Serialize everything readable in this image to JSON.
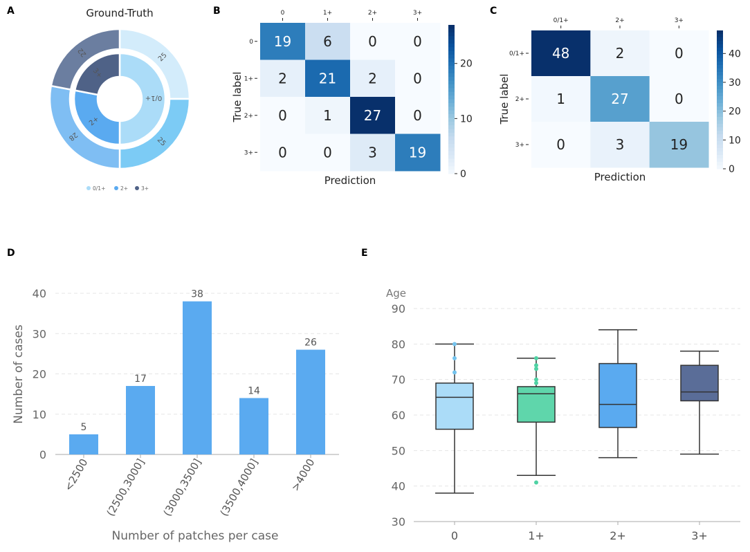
{
  "panels": {
    "a": "A",
    "b": "B",
    "c": "C",
    "d": "D",
    "e": "E"
  },
  "chart_data": [
    {
      "id": "A",
      "type": "pie",
      "title": "Ground-Truth",
      "rings": [
        {
          "name": "outer",
          "slices": [
            {
              "label": "0/1+",
              "value": 25,
              "color": "#d3ecfb"
            },
            {
              "label": "0/1+",
              "value": 25,
              "color": "#7ccbf5"
            },
            {
              "label": "2+",
              "value": 28,
              "color": "#7fbef3"
            },
            {
              "label": "3+",
              "value": 22,
              "color": "#6b7ea0"
            }
          ]
        },
        {
          "name": "inner",
          "slices": [
            {
              "label": "0/1+",
              "value": 50,
              "color": "#abdcf8"
            },
            {
              "label": "2+",
              "value": 28,
              "color": "#5aaaf0"
            },
            {
              "label": "3+",
              "value": 22,
              "color": "#4f6287"
            }
          ]
        }
      ],
      "legend": [
        {
          "label": "0/1+",
          "color": "#abdcf8"
        },
        {
          "label": "2+",
          "color": "#5aaaf0"
        },
        {
          "label": "3+",
          "color": "#4f6287"
        }
      ]
    },
    {
      "id": "B",
      "type": "heatmap",
      "x_labels": [
        "0",
        "1+",
        "2+",
        "3+"
      ],
      "y_labels": [
        "0",
        "1+",
        "2+",
        "3+"
      ],
      "matrix": [
        [
          19,
          6,
          0,
          0
        ],
        [
          2,
          21,
          2,
          0
        ],
        [
          0,
          1,
          27,
          0
        ],
        [
          0,
          0,
          3,
          19
        ]
      ],
      "xlabel": "Prediction",
      "ylabel": "True label",
      "colorbar": {
        "min": 0,
        "max": 27,
        "ticks": [
          0,
          10,
          20
        ]
      }
    },
    {
      "id": "C",
      "type": "heatmap",
      "x_labels": [
        "0/1+",
        "2+",
        "3+"
      ],
      "y_labels": [
        "0/1+",
        "2+",
        "3+"
      ],
      "matrix": [
        [
          48,
          2,
          0
        ],
        [
          1,
          27,
          0
        ],
        [
          0,
          3,
          19
        ]
      ],
      "xlabel": "Prediction",
      "ylabel": "True label",
      "colorbar": {
        "min": 0,
        "max": 48,
        "ticks": [
          0,
          10,
          20,
          30,
          40
        ]
      }
    },
    {
      "id": "D",
      "type": "bar",
      "categories": [
        "<2500",
        "(2500,3000]",
        "(3000,3500]",
        "(3500,4000]",
        ">4000"
      ],
      "values": [
        5,
        17,
        38,
        14,
        26
      ],
      "color": "#5aaaf0",
      "xlabel": "Number of patches per case",
      "ylabel": "Number of cases",
      "ylim": [
        0,
        40
      ],
      "yticks": [
        0,
        10,
        20,
        30,
        40
      ]
    },
    {
      "id": "E",
      "type": "box",
      "ylabel": "Age",
      "ylim": [
        30,
        90
      ],
      "yticks": [
        30,
        40,
        50,
        60,
        70,
        80,
        90
      ],
      "categories": [
        "0",
        "1+",
        "2+",
        "3+"
      ],
      "boxes": [
        {
          "label": "0",
          "min": 38,
          "q1": 56,
          "median": 65,
          "q3": 69,
          "max": 80,
          "outliers": [
            80,
            76,
            72
          ],
          "color": "#abdcf8",
          "outlier_color": "#74c3ee"
        },
        {
          "label": "1+",
          "min": 43,
          "q1": 58,
          "median": 66,
          "q3": 68,
          "max": 76,
          "outliers": [
            76,
            74,
            73,
            70,
            69,
            41
          ],
          "color": "#5fd6ab",
          "outlier_color": "#4fd2a4"
        },
        {
          "label": "2+",
          "min": 48,
          "q1": 56.5,
          "median": 63,
          "q3": 74.5,
          "max": 84,
          "outliers": [],
          "color": "#5aaaf0",
          "outlier_color": "#5aaaf0"
        },
        {
          "label": "3+",
          "min": 49,
          "q1": 64,
          "median": 66.5,
          "q3": 74,
          "max": 78,
          "outliers": [],
          "color": "#5a6d98",
          "outlier_color": "#5a6d98"
        }
      ]
    }
  ]
}
